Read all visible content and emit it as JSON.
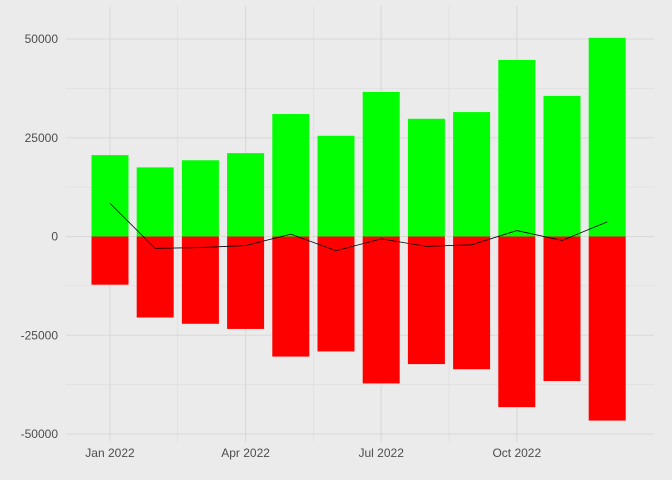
{
  "chart_data": {
    "type": "bar",
    "title": "",
    "xlabel": "",
    "ylabel": "",
    "x": [
      "2022-01",
      "2022-02",
      "2022-03",
      "2022-04",
      "2022-05",
      "2022-06",
      "2022-07",
      "2022-08",
      "2022-09",
      "2022-10",
      "2022-11",
      "2022-12"
    ],
    "series": [
      {
        "kind": "bar",
        "color": "#00ff00",
        "values": [
          20600,
          17500,
          19300,
          21100,
          31000,
          25500,
          36600,
          29800,
          31500,
          44700,
          35600,
          50300
        ]
      },
      {
        "kind": "bar",
        "color": "#ff0000",
        "values": [
          -12200,
          -20500,
          -22100,
          -23400,
          -30400,
          -29100,
          -37200,
          -32300,
          -33600,
          -43200,
          -36600,
          -46600
        ]
      },
      {
        "kind": "line",
        "color": "#000000",
        "values": [
          8400,
          -3000,
          -2800,
          -2300,
          600,
          -3600,
          -600,
          -2500,
          -2100,
          1500,
          -1000,
          3700
        ]
      }
    ],
    "x_ticks": [
      {
        "x": "2022-01",
        "label": "Jan 2022"
      },
      {
        "x": "2022-04",
        "label": "Apr 2022"
      },
      {
        "x": "2022-07",
        "label": "Jul 2022"
      },
      {
        "x": "2022-10",
        "label": "Oct 2022"
      }
    ],
    "y_ticks": [
      {
        "value": 50000,
        "label": "50000"
      },
      {
        "value": 25000,
        "label": "25000"
      },
      {
        "value": 0,
        "label": "0"
      },
      {
        "value": -25000,
        "label": "-25000"
      },
      {
        "value": -50000,
        "label": "-50000"
      }
    ],
    "ylim": [
      -50000,
      50000
    ],
    "grid": true,
    "legend": "none",
    "background": "#ebebeb",
    "grid_color": "#d9d9d9"
  }
}
